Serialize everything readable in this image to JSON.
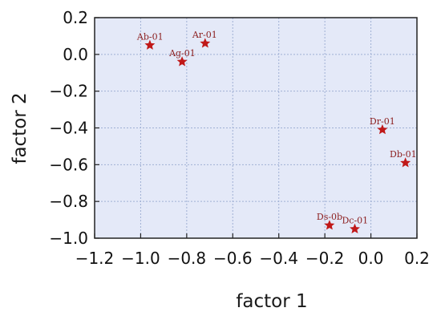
{
  "colors": {
    "plot_background": "#e4e9f8",
    "grid": "#9fb0d4",
    "marker": "#c01818",
    "label": "#8b1d1d",
    "frame": "#222222"
  },
  "chart_data": {
    "type": "scatter",
    "xlabel": "factor 1",
    "ylabel": "factor 2",
    "xlim": [
      -1.2,
      0.2
    ],
    "ylim": [
      -1.0,
      0.2
    ],
    "xticks": [
      "−1.2",
      "−1.0",
      "−0.8",
      "−0.6",
      "−0.4",
      "−0.2",
      "0.0",
      "0.2"
    ],
    "xtick_values": [
      -1.2,
      -1.0,
      -0.8,
      -0.6,
      -0.4,
      -0.2,
      0.0,
      0.2
    ],
    "yticks": [
      "0.2",
      "0.0",
      "−0.2",
      "−0.4",
      "−0.6",
      "−0.8",
      "−1.0"
    ],
    "ytick_values": [
      0.2,
      0.0,
      -0.2,
      -0.4,
      -0.6,
      -0.8,
      -1.0
    ],
    "grid": true,
    "marker": "star",
    "points": [
      {
        "label": "Ab-01",
        "x": -0.96,
        "y": 0.05
      },
      {
        "label": "Ag-01",
        "x": -0.82,
        "y": -0.04
      },
      {
        "label": "Ar-01",
        "x": -0.72,
        "y": 0.06
      },
      {
        "label": "Dr-01",
        "x": 0.05,
        "y": -0.41
      },
      {
        "label": "Db-01",
        "x": 0.15,
        "y": -0.59
      },
      {
        "label": "Ds-0b",
        "x": -0.18,
        "y": -0.93
      },
      {
        "label": "Dc-01",
        "x": -0.07,
        "y": -0.95
      }
    ]
  }
}
